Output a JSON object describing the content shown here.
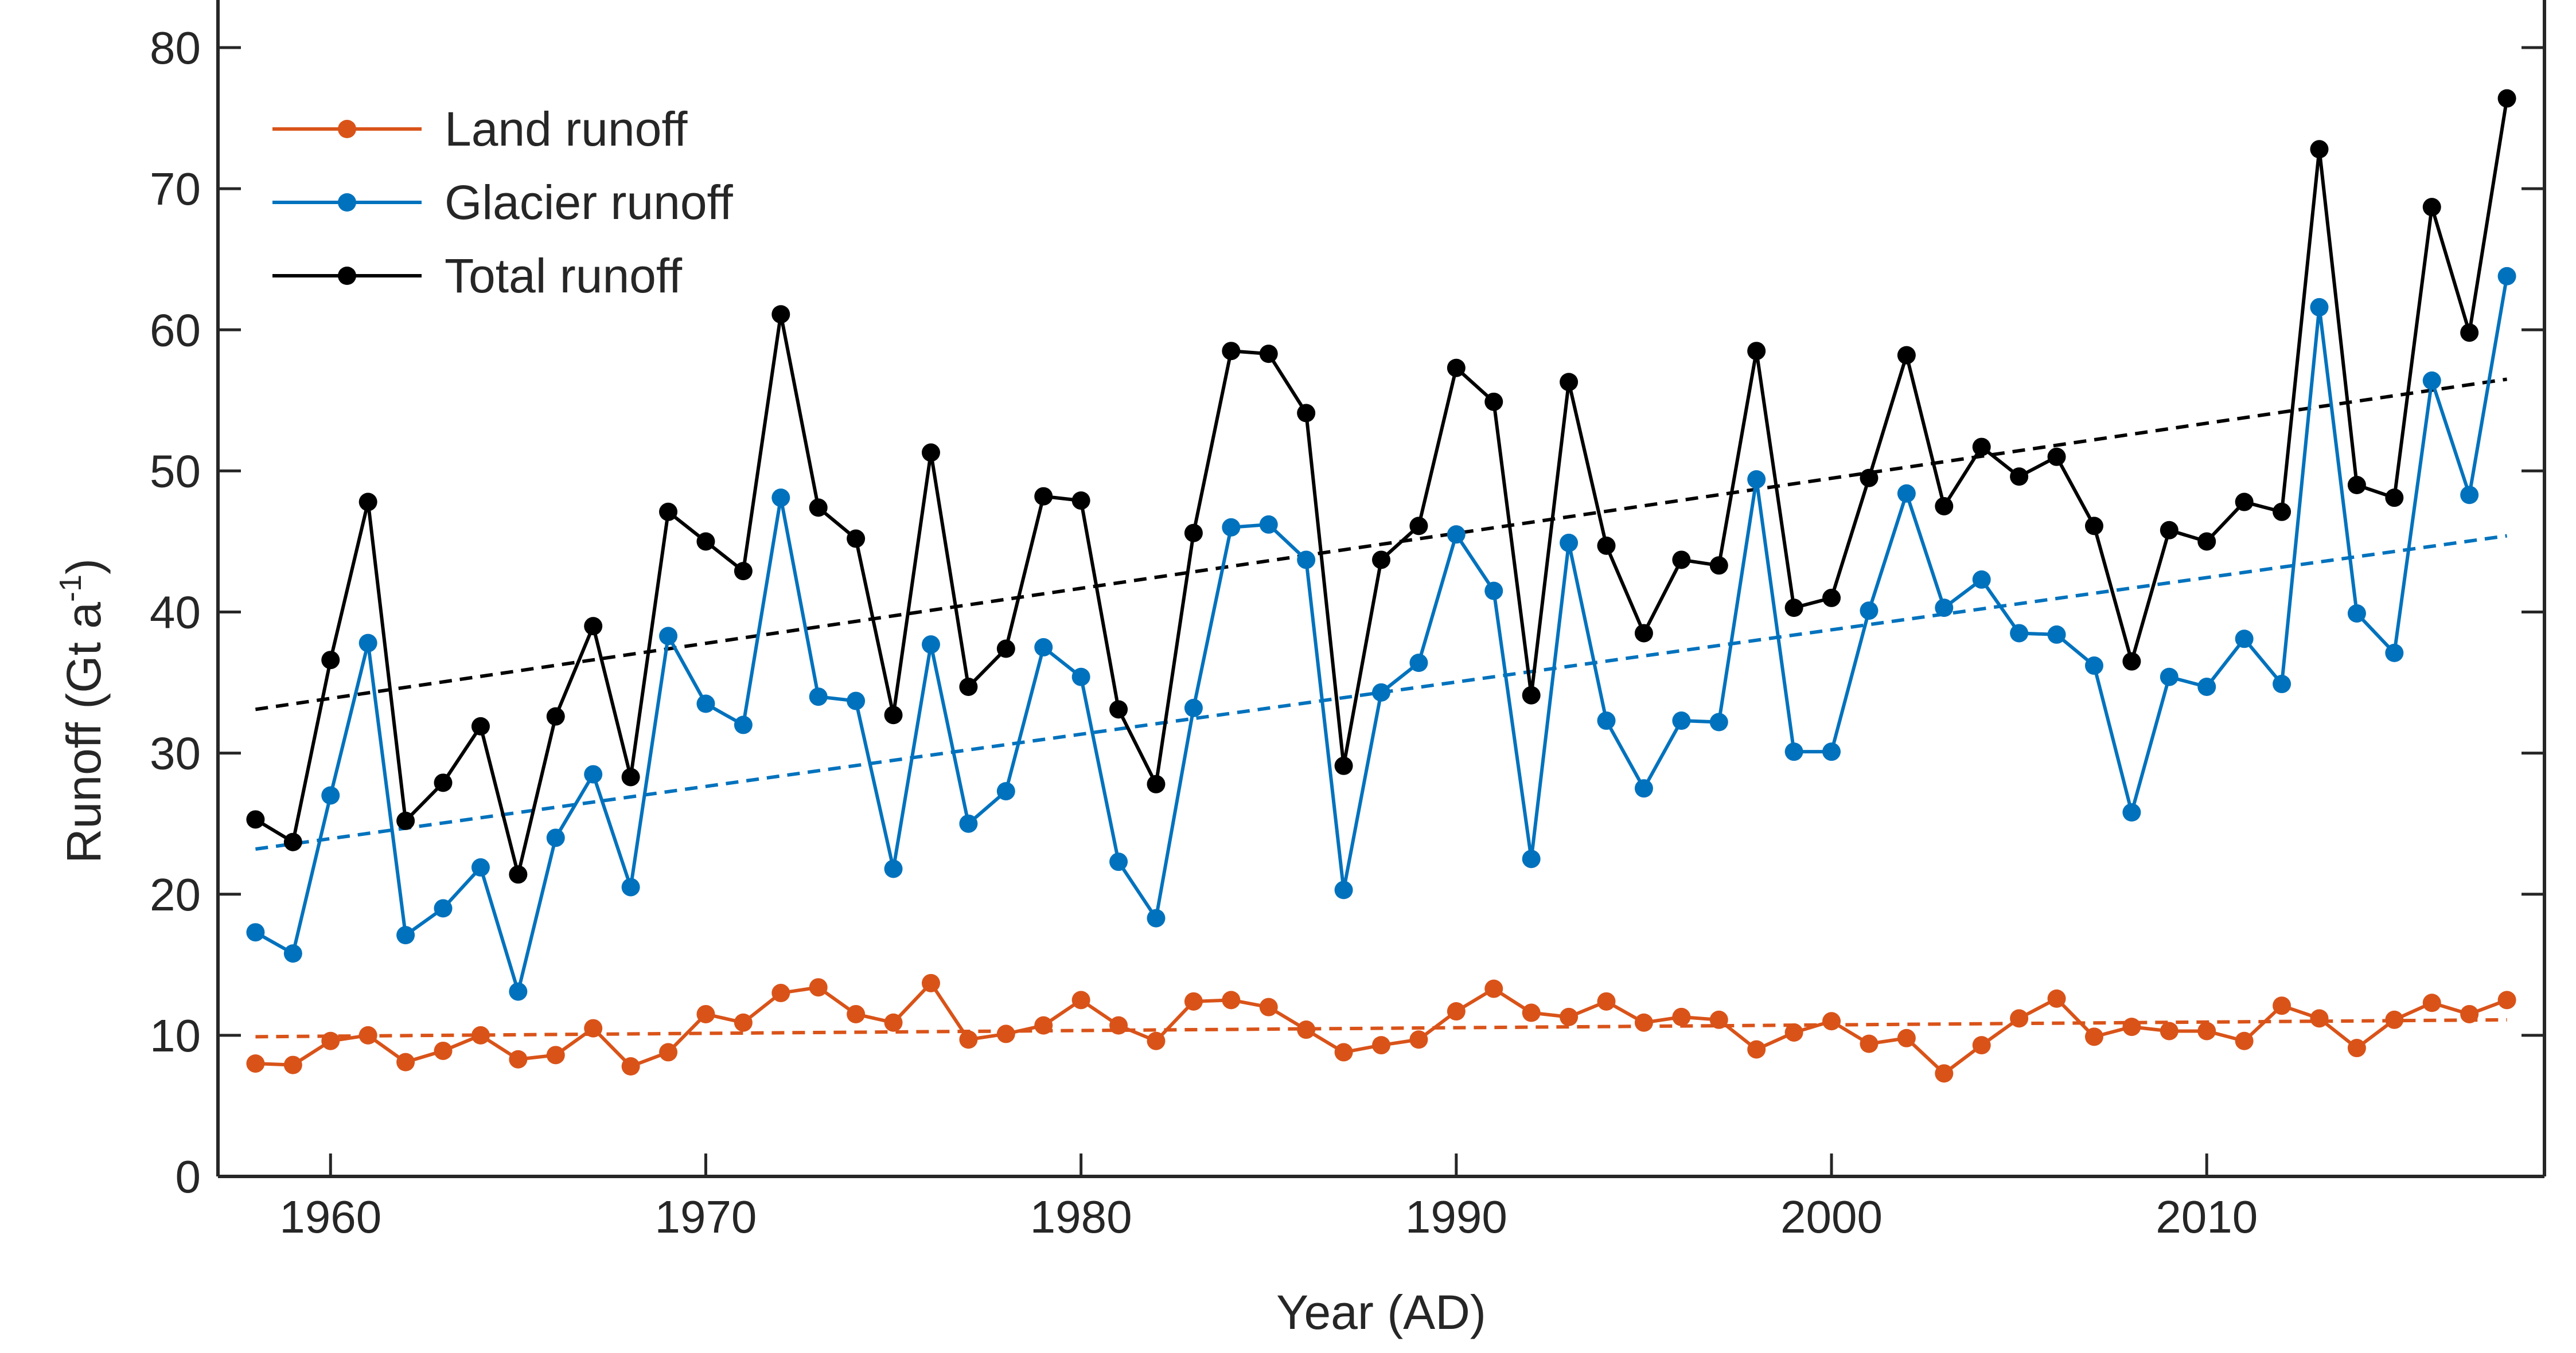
{
  "chart_data": {
    "type": "line",
    "title": "",
    "xlabel": "Year (AD)",
    "ylabel_main": "Runoff (Gt a",
    "ylabel_sup": "-1",
    "ylabel_close": ")",
    "xlim": [
      1957,
      2019
    ],
    "ylim": [
      0,
      85
    ],
    "xticks": [
      1960,
      1970,
      1980,
      1990,
      2000,
      2010
    ],
    "yticks": [
      0,
      10,
      20,
      30,
      40,
      50,
      60,
      70,
      80
    ],
    "grid": false,
    "legend_position": "top-left",
    "x": [
      1958,
      1959,
      1960,
      1961,
      1962,
      1963,
      1964,
      1965,
      1966,
      1967,
      1968,
      1969,
      1970,
      1971,
      1972,
      1973,
      1974,
      1975,
      1976,
      1977,
      1978,
      1979,
      1980,
      1981,
      1982,
      1983,
      1984,
      1985,
      1986,
      1987,
      1988,
      1989,
      1990,
      1991,
      1992,
      1993,
      1994,
      1995,
      1996,
      1997,
      1998,
      1999,
      2000,
      2001,
      2002,
      2003,
      2004,
      2005,
      2006,
      2007,
      2008,
      2009,
      2010,
      2011,
      2012,
      2013,
      2014,
      2015,
      2016,
      2017,
      2018
    ],
    "series": [
      {
        "name": "Land runoff",
        "color": "#D95319",
        "values": [
          8.0,
          7.9,
          9.6,
          10.0,
          8.1,
          8.9,
          10.0,
          8.3,
          8.6,
          10.5,
          7.8,
          8.8,
          11.5,
          10.9,
          13.0,
          13.4,
          11.5,
          10.9,
          13.7,
          9.7,
          10.1,
          10.7,
          12.5,
          10.7,
          9.6,
          12.4,
          12.5,
          12.0,
          10.4,
          8.8,
          9.3,
          9.7,
          11.7,
          13.3,
          11.6,
          11.3,
          12.4,
          10.9,
          11.3,
          11.1,
          9.0,
          10.2,
          11.0,
          9.4,
          9.8,
          7.3,
          9.3,
          11.2,
          12.6,
          9.9,
          10.6,
          10.3,
          10.3,
          9.6,
          12.1,
          11.2,
          9.1,
          11.1,
          12.3,
          11.5,
          12.5
        ],
        "trend": [
          9.9,
          11.1
        ]
      },
      {
        "name": "Glacier runoff",
        "color": "#0072BD",
        "values": [
          17.3,
          15.8,
          27.0,
          37.8,
          17.1,
          19.0,
          21.9,
          13.1,
          24.0,
          28.5,
          20.5,
          38.3,
          33.5,
          32.0,
          48.1,
          34.0,
          33.7,
          21.8,
          37.7,
          25.0,
          27.3,
          37.5,
          35.4,
          22.3,
          18.3,
          33.2,
          46.0,
          46.2,
          43.7,
          20.3,
          34.3,
          36.4,
          45.5,
          41.5,
          22.5,
          44.9,
          32.3,
          27.5,
          32.3,
          32.2,
          49.4,
          30.1,
          30.1,
          40.1,
          48.4,
          40.3,
          42.3,
          38.5,
          38.4,
          36.2,
          25.8,
          35.4,
          34.7,
          38.1,
          34.9,
          61.6,
          39.9,
          37.1,
          56.4,
          48.3,
          63.8
        ],
        "trend": [
          23.2,
          45.4
        ]
      },
      {
        "name": "Total runoff",
        "color": "#000000",
        "values": [
          25.3,
          23.7,
          36.6,
          47.8,
          25.2,
          27.9,
          31.9,
          21.4,
          32.6,
          39.0,
          28.3,
          47.1,
          45.0,
          42.9,
          61.1,
          47.4,
          45.2,
          32.7,
          51.3,
          34.7,
          37.4,
          48.2,
          47.9,
          33.1,
          27.8,
          45.6,
          58.5,
          58.3,
          54.1,
          29.1,
          43.7,
          46.1,
          57.3,
          54.9,
          34.1,
          56.3,
          44.7,
          38.5,
          43.7,
          43.3,
          58.5,
          40.3,
          41.0,
          49.5,
          58.2,
          47.5,
          51.7,
          49.6,
          51.0,
          46.1,
          36.5,
          45.8,
          45.0,
          47.8,
          47.1,
          72.8,
          49.0,
          48.1,
          68.7,
          59.8,
          76.4
        ],
        "trend": [
          33.1,
          56.5
        ]
      }
    ]
  }
}
